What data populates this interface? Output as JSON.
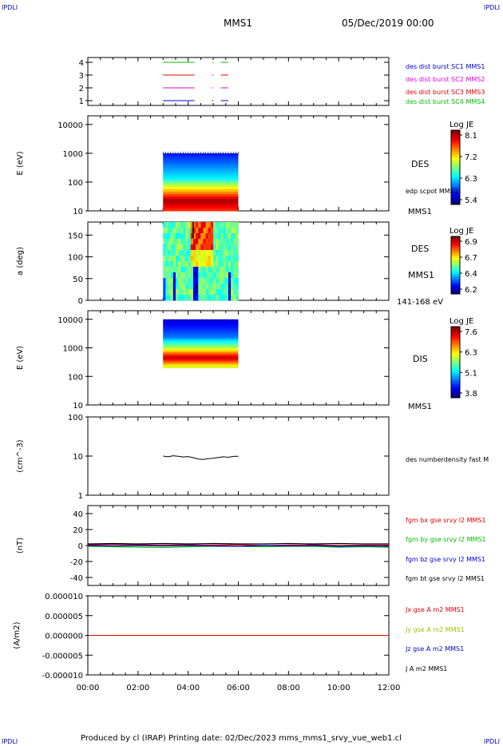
{
  "corner_labels": {
    "top_left": "IPDLI",
    "top_right": "IPDLI",
    "bottom_left": "IPDLI",
    "bottom_right": "IPDLI"
  },
  "header": {
    "spacecraft": "MMS1",
    "date": "05/Dec/2019 00:00"
  },
  "footer": {
    "text": "Produced by cl (IRAP)   Printing date: 02/Dec/2023   mms_mms1_srvy_vue_web1.cl"
  },
  "colors": {
    "red": "#e00000",
    "green": "#00c000",
    "blue": "#0000d0",
    "magenta": "#e000e0",
    "black": "#000000"
  },
  "chart_data": [
    {
      "type": "line",
      "name": "burst-intervals",
      "yticks": [
        "1",
        "2",
        "3",
        "4"
      ],
      "ylim": [
        0.6,
        4.4
      ],
      "series": [
        {
          "name": "des dist burst SC1 MMS1",
          "color": "#0000d0",
          "y": 1,
          "segments": [
            [
              3.0,
              4.25
            ],
            [
              4.95,
              5.0
            ],
            [
              5.3,
              5.6
            ]
          ]
        },
        {
          "name": "des dist burst SC2 MMS2",
          "color": "#e000e0",
          "y": 2,
          "segments": [
            [
              3.0,
              4.25
            ],
            [
              4.95,
              5.0
            ],
            [
              5.3,
              5.6
            ]
          ]
        },
        {
          "name": "des dist burst SC3 MMS3",
          "color": "#e00000",
          "y": 3,
          "segments": [
            [
              3.0,
              4.25
            ],
            [
              4.95,
              5.0
            ],
            [
              5.3,
              5.6
            ]
          ]
        },
        {
          "name": "des dist burst SC4 MMS4",
          "color": "#00c000",
          "y": 4,
          "segments": [
            [
              3.0,
              4.25
            ],
            [
              4.95,
              5.0
            ],
            [
              5.3,
              5.6
            ]
          ]
        }
      ]
    },
    {
      "type": "heatmap",
      "name": "des-energy-spectrogram",
      "ylabel": "E (eV)",
      "yscale": "log",
      "ylim": [
        10,
        20000
      ],
      "yticks": [
        "10",
        "100",
        "1000",
        "10000"
      ],
      "time_range": [
        3.0,
        6.0
      ],
      "energy_range": [
        10,
        1000
      ],
      "side_labels": [
        "DES",
        "edp scpot MMS1",
        "MMS1"
      ],
      "colorbar": {
        "title": "Log JE",
        "ticks": [
          "8.1",
          "7.2",
          "6.3",
          "5.4"
        ]
      }
    },
    {
      "type": "heatmap",
      "name": "des-pitch-angle",
      "ylabel": "a (deg)",
      "ylim": [
        0,
        180
      ],
      "yticks": [
        "0",
        "50",
        "100",
        "150"
      ],
      "time_range": [
        3.0,
        6.0
      ],
      "side_labels": [
        "DES",
        "MMS1",
        "141-168 eV"
      ],
      "colorbar": {
        "title": "Log JE",
        "ticks": [
          "6.9",
          "6.7",
          "6.4",
          "6.2"
        ]
      }
    },
    {
      "type": "heatmap",
      "name": "dis-energy-spectrogram",
      "ylabel": "E (eV)",
      "yscale": "log",
      "ylim": [
        10,
        20000
      ],
      "yticks": [
        "10",
        "100",
        "1000",
        "10000"
      ],
      "time_range": [
        3.0,
        6.0
      ],
      "energy_range": [
        200,
        10000
      ],
      "side_labels": [
        "DIS",
        "MMS1"
      ],
      "colorbar": {
        "title": "Log JE",
        "ticks": [
          "7.6",
          "6.3",
          "5.1",
          "3.8"
        ]
      }
    },
    {
      "type": "line",
      "name": "density",
      "ylabel": "(cm^-3)",
      "yscale": "log",
      "ylim": [
        1,
        100
      ],
      "yticks": [
        "1",
        "10",
        "100"
      ],
      "series": [
        {
          "name": "des numberdensity fast M",
          "color": "#000000",
          "x": [
            3.0,
            3.2,
            3.4,
            3.6,
            3.8,
            4.0,
            4.2,
            4.4,
            4.6,
            4.8,
            5.0,
            5.2,
            5.4,
            5.6,
            5.8,
            6.0
          ],
          "y": [
            10.0,
            9.6,
            10.2,
            9.9,
            9.5,
            9.7,
            9.1,
            8.4,
            8.2,
            8.6,
            8.8,
            9.2,
            9.6,
            9.3,
            9.8,
            9.9
          ]
        }
      ]
    },
    {
      "type": "line",
      "name": "magnetic-field",
      "ylabel": "(nT)",
      "ylim": [
        -50,
        50
      ],
      "yticks": [
        "-40",
        "-20",
        "0",
        "20",
        "40"
      ],
      "series": [
        {
          "name": "fgm bx gse srvy l2 MMS1",
          "color": "#e00000",
          "x": [
            0,
            1,
            2,
            3,
            4,
            5,
            6,
            7,
            8,
            9,
            10,
            11,
            12
          ],
          "y": [
            1,
            1.5,
            1,
            0.5,
            1,
            0.5,
            1,
            0,
            0.5,
            1,
            0,
            0.5,
            0.5
          ]
        },
        {
          "name": "fgm by gse srvy l2 MMS1",
          "color": "#00c000",
          "x": [
            0,
            1,
            2,
            3,
            4,
            5,
            6,
            7,
            8,
            9,
            10,
            11,
            12
          ],
          "y": [
            -1,
            -1.5,
            -2,
            -2.5,
            -1.5,
            -1,
            -1,
            -1.5,
            -1,
            -1,
            -2,
            -1.5,
            -2
          ]
        },
        {
          "name": "fgm bz gse srvy l2 MMS1",
          "color": "#0000d0",
          "x": [
            0,
            1,
            2,
            3,
            4,
            5,
            6,
            7,
            8,
            9,
            10,
            11,
            12
          ],
          "y": [
            0,
            -0.5,
            0,
            -0.5,
            0,
            -0.5,
            -1,
            0,
            -0.5,
            0,
            -1,
            -0.5,
            -1
          ]
        },
        {
          "name": "fgm bt gse srvy l2 MMS1",
          "color": "#000000",
          "x": [
            0,
            1,
            2,
            3,
            4,
            5,
            6,
            7,
            8,
            9,
            10,
            11,
            12
          ],
          "y": [
            2,
            2.5,
            2,
            2.5,
            2,
            2.5,
            2,
            2,
            2.5,
            2,
            2.5,
            2,
            2
          ]
        }
      ]
    },
    {
      "type": "line",
      "name": "current-density",
      "ylabel": "(A/m2)",
      "ylim": [
        -1e-05,
        1e-05
      ],
      "yticks": [
        "-0.000010",
        "-0.000005",
        "0.000000",
        "0.000005",
        "0.000010"
      ],
      "series": [
        {
          "name": "Jx gse A m2 MMS1",
          "color": "#e00000",
          "x": [
            0,
            12
          ],
          "y": [
            0,
            0
          ]
        },
        {
          "name": "Jy gse A m2 MMS1",
          "color": "#a0c000",
          "x": [
            0,
            12
          ],
          "y": [
            0,
            0
          ]
        },
        {
          "name": "Jz gse A m2 MMS1",
          "color": "#0000d0",
          "x": [
            0,
            12
          ],
          "y": [
            0,
            0
          ]
        },
        {
          "name": "J A m2 MMS1",
          "color": "#000000",
          "x": [
            0,
            12
          ],
          "y": [
            0,
            0
          ]
        }
      ]
    }
  ],
  "x_axis": {
    "ticks": [
      "00:00",
      "02:00",
      "04:00",
      "06:00",
      "08:00",
      "10:00",
      "12:00"
    ],
    "xlim": [
      0,
      12
    ]
  }
}
